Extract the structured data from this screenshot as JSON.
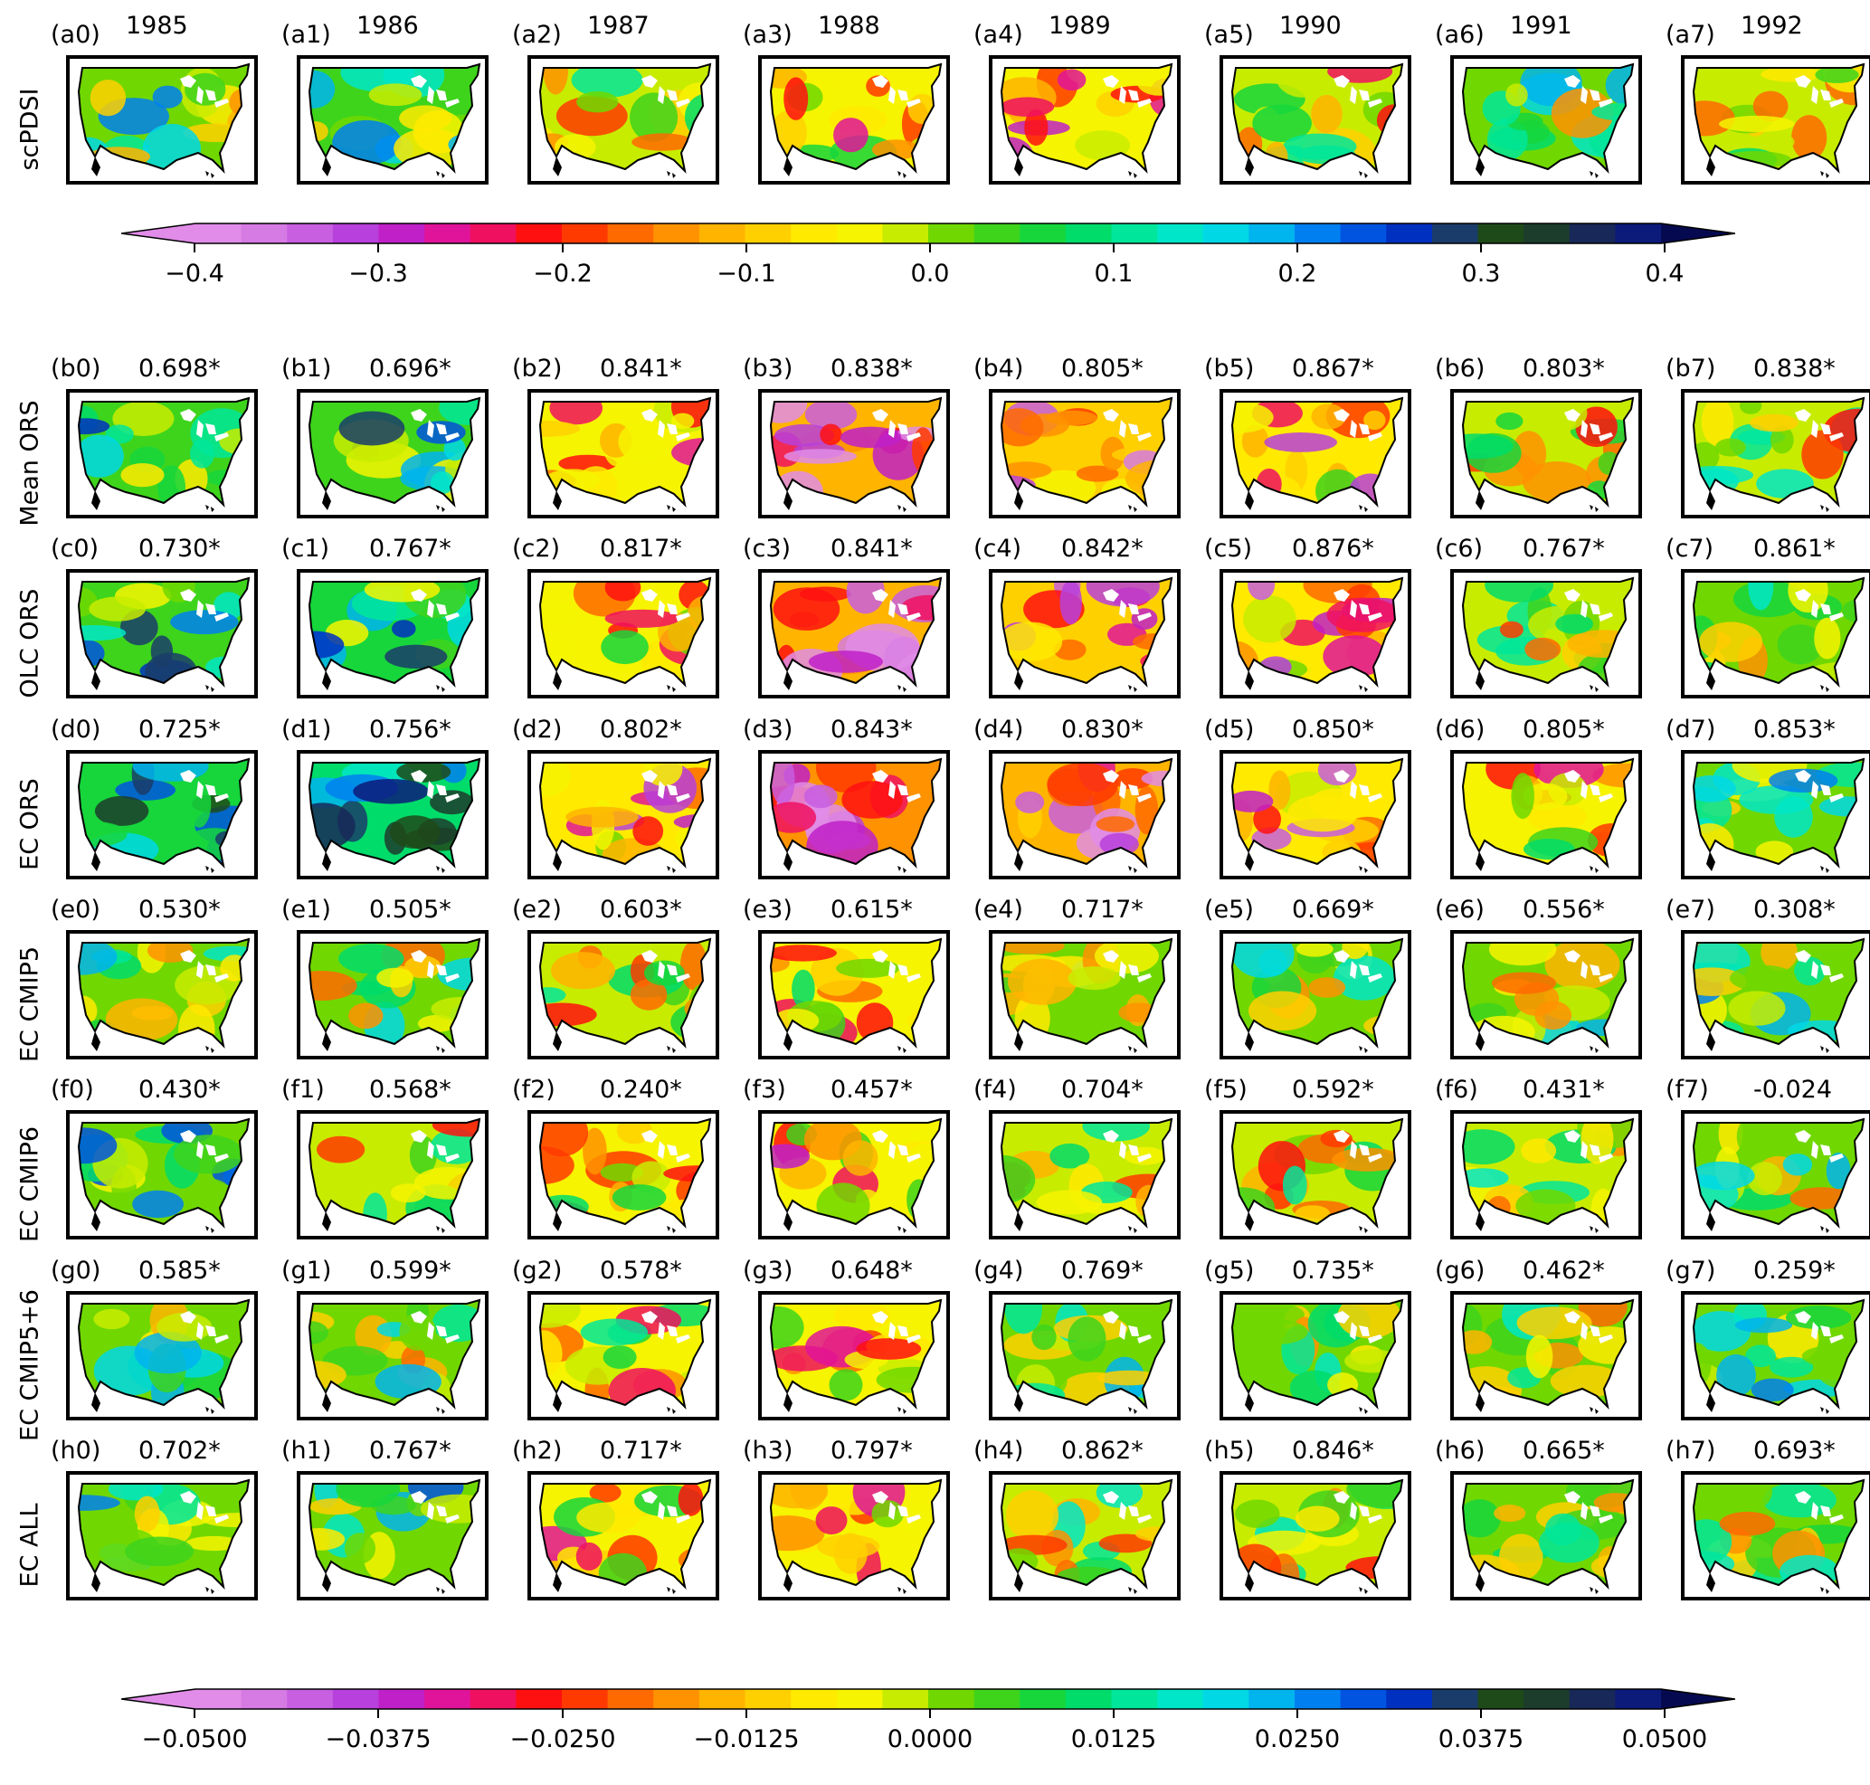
{
  "years": [
    "1985",
    "1986",
    "1987",
    "1988",
    "1989",
    "1990",
    "1991",
    "1992"
  ],
  "rows": [
    {
      "key": "a",
      "name": "scPDSI",
      "labels": [
        "(a0)",
        "(a1)",
        "(a2)",
        "(a3)",
        "(a4)",
        "(a5)",
        "(a6)",
        "(a7)"
      ],
      "values": [
        "",
        "",
        "",
        "",
        "",
        "",
        "",
        ""
      ],
      "themes": [
        0.15,
        0.25,
        -0.05,
        -0.35,
        -0.4,
        -0.2,
        0.1,
        -0.05
      ]
    },
    {
      "key": "b",
      "name": "Mean ORS",
      "labels": [
        "(b0)",
        "(b1)",
        "(b2)",
        "(b3)",
        "(b4)",
        "(b5)",
        "(b6)",
        "(b7)"
      ],
      "values": [
        "0.698*",
        "0.696*",
        "0.841*",
        "0.838*",
        "0.805*",
        "0.867*",
        "0.803*",
        "0.838*"
      ],
      "themes": [
        0.35,
        0.4,
        -0.3,
        -0.9,
        -0.7,
        -0.5,
        -0.2,
        -0.1
      ]
    },
    {
      "key": "c",
      "name": "OLC ORS",
      "labels": [
        "(c0)",
        "(c1)",
        "(c2)",
        "(c3)",
        "(c4)",
        "(c5)",
        "(c6)",
        "(c7)"
      ],
      "values": [
        "0.730*",
        "0.767*",
        "0.817*",
        "0.841*",
        "0.842*",
        "0.876*",
        "0.767*",
        "0.861*"
      ],
      "themes": [
        0.4,
        0.45,
        -0.35,
        -1.0,
        -0.7,
        -0.55,
        -0.2,
        0.05
      ]
    },
    {
      "key": "d",
      "name": "EC ORS",
      "labels": [
        "(d0)",
        "(d1)",
        "(d2)",
        "(d3)",
        "(d4)",
        "(d5)",
        "(d6)",
        "(d7)"
      ],
      "values": [
        "0.725*",
        "0.756*",
        "0.802*",
        "0.843*",
        "0.830*",
        "0.850*",
        "0.805*",
        "0.853*"
      ],
      "themes": [
        0.6,
        0.7,
        -0.5,
        -1.2,
        -0.9,
        -0.6,
        -0.3,
        0.2
      ]
    },
    {
      "key": "e",
      "name": "EC CMIP5",
      "labels": [
        "(e0)",
        "(e1)",
        "(e2)",
        "(e3)",
        "(e4)",
        "(e5)",
        "(e6)",
        "(e7)"
      ],
      "values": [
        "0.530*",
        "0.505*",
        "0.603*",
        "0.615*",
        "0.717*",
        "0.669*",
        "0.556*",
        "0.308*"
      ],
      "themes": [
        0.1,
        0.05,
        -0.2,
        -0.3,
        0.0,
        0.0,
        0.05,
        0.15
      ]
    },
    {
      "key": "f",
      "name": "EC CMIP6",
      "labels": [
        "(f0)",
        "(f1)",
        "(f2)",
        "(f3)",
        "(f4)",
        "(f5)",
        "(f6)",
        "(f7)"
      ],
      "values": [
        "0.430*",
        "0.568*",
        "0.240*",
        "0.457*",
        "0.704*",
        "0.592*",
        "0.431*",
        "-0.024"
      ],
      "themes": [
        0.2,
        -0.15,
        -0.3,
        -0.4,
        -0.15,
        -0.2,
        -0.1,
        0.05
      ]
    },
    {
      "key": "g",
      "name": "EC CMIP5+6",
      "labels": [
        "(g0)",
        "(g1)",
        "(g2)",
        "(g3)",
        "(g4)",
        "(g5)",
        "(g6)",
        "(g7)"
      ],
      "values": [
        "0.585*",
        "0.599*",
        "0.578*",
        "0.648*",
        "0.769*",
        "0.735*",
        "0.462*",
        "0.259*"
      ],
      "themes": [
        0.1,
        0.05,
        -0.25,
        -0.3,
        0.05,
        0.0,
        0.05,
        0.15
      ]
    },
    {
      "key": "h",
      "name": "EC ALL",
      "labels": [
        "(h0)",
        "(h1)",
        "(h2)",
        "(h3)",
        "(h4)",
        "(h5)",
        "(h6)",
        "(h7)"
      ],
      "values": [
        "0.702*",
        "0.767*",
        "0.717*",
        "0.797*",
        "0.862*",
        "0.846*",
        "0.665*",
        "0.693*"
      ],
      "themes": [
        0.15,
        0.2,
        -0.3,
        -0.4,
        -0.1,
        -0.15,
        0.05,
        0.0
      ]
    }
  ],
  "colorbars": [
    {
      "name": "scpdsi-colorbar",
      "ticks": [
        "−0.4",
        "−0.3",
        "−0.2",
        "−0.1",
        "0.0",
        "0.1",
        "0.2",
        "0.3",
        "0.4"
      ],
      "range": [
        -0.4,
        0.4
      ]
    },
    {
      "name": "model-colorbar",
      "ticks": [
        "−0.0500",
        "−0.0375",
        "−0.0250",
        "−0.0125",
        "0.0000",
        "0.0125",
        "0.0250",
        "0.0375",
        "0.0500"
      ],
      "range": [
        -0.05,
        0.05
      ]
    }
  ],
  "colormap": [
    "#e08ce8",
    "#d67ae4",
    "#c85ee0",
    "#b840dc",
    "#c020c8",
    "#e0149a",
    "#f01060",
    "#ff1010",
    "#ff3a00",
    "#ff6a00",
    "#ff9200",
    "#ffb400",
    "#ffd000",
    "#ffea00",
    "#f6f400",
    "#c8ec00",
    "#70d800",
    "#3ed41c",
    "#16d63c",
    "#00dc6a",
    "#00e69a",
    "#00e6c8",
    "#00d8e6",
    "#00b4ee",
    "#0080f0",
    "#0054e0",
    "#0030c0",
    "#1a3c6a",
    "#1e4a1a",
    "#1c3c2c",
    "#182858",
    "#0c1a7a"
  ]
}
